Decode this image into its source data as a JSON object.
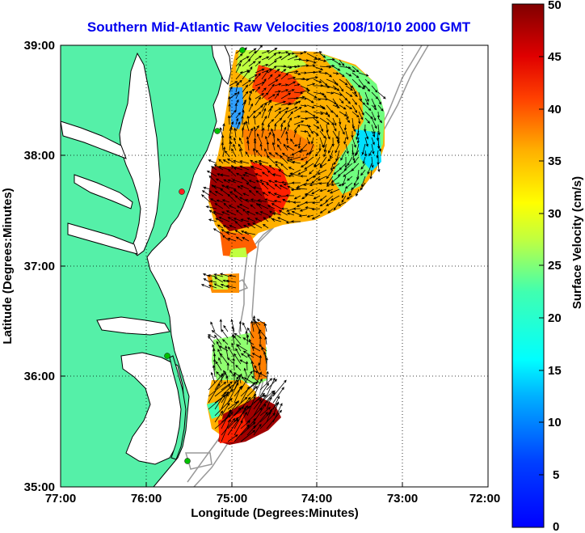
{
  "title": "Southern Mid-Atlantic Raw Velocities 2008/10/10 2000 GMT",
  "title_color": "#0000ee",
  "map": {
    "xlabel": "Longitude (Degrees:Minutes)",
    "ylabel": "Latitude (Degrees:Minutes)",
    "x_ticks": [
      "77:00",
      "76:00",
      "75:00",
      "74:00",
      "73:00",
      "72:00"
    ],
    "y_ticks": [
      "39:00",
      "38:00",
      "37:00",
      "36:00",
      "35:00"
    ],
    "lon_range": [
      -77,
      -72
    ],
    "lat_range": [
      35,
      39
    ],
    "land_color": "#55f0a8",
    "water_color": "#ffffff",
    "coast_color": "#000000",
    "bathymetry_color": "#999999",
    "grid": "dotted",
    "site_markers": [
      "green",
      "green",
      "red",
      "green",
      "green"
    ]
  },
  "colorbar": {
    "label": "Surface Velocity (cm/s)",
    "ticks": [
      "50",
      "45",
      "40",
      "35",
      "30",
      "25",
      "20",
      "15",
      "10",
      "5",
      "0"
    ],
    "range": [
      0,
      50
    ],
    "colormap": "jet"
  }
}
